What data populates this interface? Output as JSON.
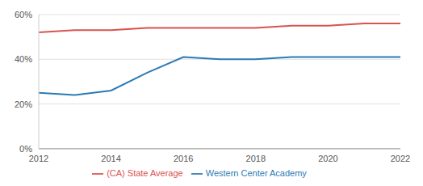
{
  "chart_data": {
    "type": "line",
    "x": [
      2012,
      2013,
      2014,
      2015,
      2016,
      2017,
      2018,
      2019,
      2020,
      2021,
      2022
    ],
    "series": [
      {
        "name": "Western Center Academy",
        "color": "#2c7bb6",
        "values": [
          25,
          24,
          26,
          34,
          41,
          40,
          40,
          41,
          41,
          41,
          41
        ]
      },
      {
        "name": "(CA) State Average",
        "color": "#d9534f",
        "values": [
          52,
          53,
          53,
          54,
          54,
          54,
          54,
          55,
          55,
          56,
          56
        ]
      }
    ],
    "xlim": [
      2012,
      2022
    ],
    "xticks": [
      2012,
      2014,
      2016,
      2018,
      2020,
      2022
    ],
    "ylim": [
      0,
      60
    ],
    "yticks": [
      {
        "value": 0,
        "label": "0%"
      },
      {
        "value": 20,
        "label": "20%"
      },
      {
        "value": 40,
        "label": "40%"
      },
      {
        "value": 60,
        "label": "60%"
      }
    ],
    "grid": true,
    "legend": "bottom"
  }
}
